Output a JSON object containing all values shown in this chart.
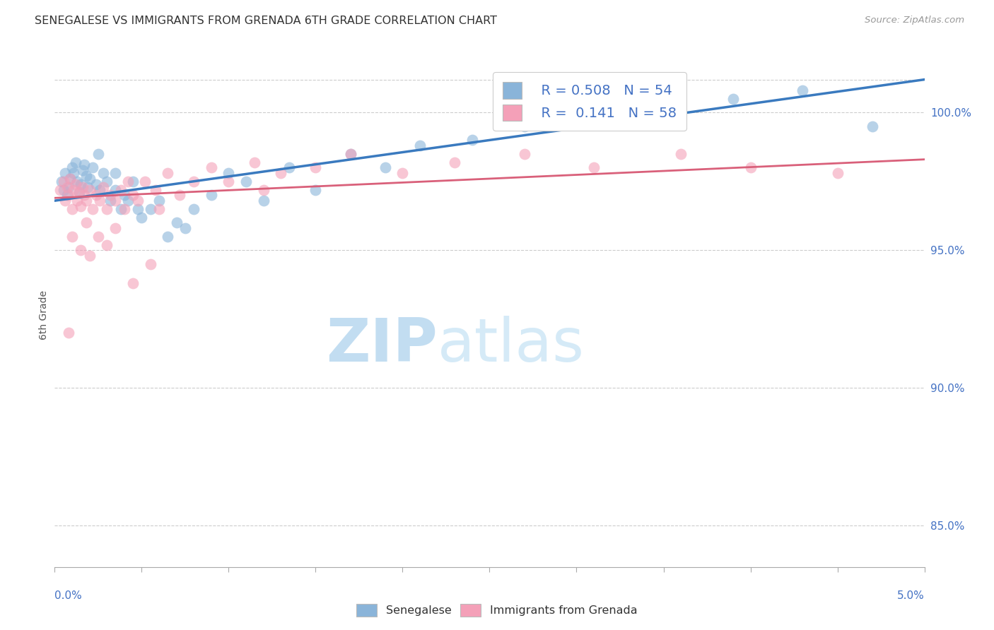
{
  "title": "SENEGALESE VS IMMIGRANTS FROM GRENADA 6TH GRADE CORRELATION CHART",
  "source": "Source: ZipAtlas.com",
  "ylabel": "6th Grade",
  "y_ticks": [
    85.0,
    90.0,
    95.0,
    100.0
  ],
  "x_min": 0.0,
  "x_max": 5.0,
  "y_min": 83.5,
  "y_max": 101.8,
  "legend_blue_r": "R = 0.508",
  "legend_blue_n": "N = 54",
  "legend_pink_r": "R =  0.141",
  "legend_pink_n": "N = 58",
  "blue_color": "#8ab4d9",
  "pink_color": "#f4a0b8",
  "trend_blue_color": "#3a7abf",
  "trend_pink_color": "#d9607a",
  "watermark_zip": "ZIP",
  "watermark_atlas": "atlas",
  "blue_scatter_x": [
    0.04,
    0.05,
    0.06,
    0.07,
    0.08,
    0.09,
    0.1,
    0.11,
    0.12,
    0.13,
    0.14,
    0.15,
    0.16,
    0.17,
    0.18,
    0.19,
    0.2,
    0.22,
    0.24,
    0.26,
    0.28,
    0.3,
    0.32,
    0.35,
    0.38,
    0.4,
    0.42,
    0.45,
    0.5,
    0.55,
    0.6,
    0.65,
    0.7,
    0.75,
    0.8,
    0.9,
    1.0,
    1.1,
    1.2,
    1.35,
    1.5,
    1.7,
    1.9,
    2.1,
    2.4,
    2.7,
    3.1,
    3.5,
    3.9,
    4.3,
    4.7,
    0.25,
    0.35,
    0.48
  ],
  "blue_scatter_y": [
    97.5,
    97.2,
    97.8,
    97.0,
    97.3,
    97.6,
    98.0,
    97.8,
    98.2,
    97.5,
    97.1,
    97.4,
    97.9,
    98.1,
    97.7,
    97.3,
    97.6,
    98.0,
    97.4,
    97.2,
    97.8,
    97.5,
    96.8,
    97.2,
    96.5,
    97.0,
    96.8,
    97.5,
    96.2,
    96.5,
    96.8,
    95.5,
    96.0,
    95.8,
    96.5,
    97.0,
    97.8,
    97.5,
    96.8,
    98.0,
    97.2,
    98.5,
    98.0,
    98.8,
    99.0,
    99.5,
    99.8,
    100.2,
    100.5,
    100.8,
    99.5,
    98.5,
    97.8,
    96.5
  ],
  "pink_scatter_x": [
    0.03,
    0.05,
    0.06,
    0.07,
    0.08,
    0.09,
    0.1,
    0.11,
    0.12,
    0.13,
    0.14,
    0.15,
    0.16,
    0.17,
    0.18,
    0.2,
    0.22,
    0.24,
    0.26,
    0.28,
    0.3,
    0.32,
    0.35,
    0.38,
    0.4,
    0.42,
    0.45,
    0.48,
    0.52,
    0.58,
    0.65,
    0.72,
    0.8,
    0.9,
    1.0,
    1.15,
    1.3,
    1.5,
    1.7,
    2.0,
    2.3,
    2.7,
    3.1,
    3.6,
    4.0,
    4.5,
    0.1,
    0.15,
    0.2,
    0.25,
    0.3,
    0.35,
    0.45,
    0.6,
    0.08,
    0.18,
    0.55,
    1.2
  ],
  "pink_scatter_y": [
    97.2,
    97.5,
    96.8,
    97.3,
    97.0,
    97.6,
    96.5,
    97.2,
    97.4,
    96.8,
    97.1,
    96.6,
    97.3,
    97.0,
    96.8,
    97.2,
    96.5,
    97.0,
    96.8,
    97.3,
    96.5,
    97.0,
    96.8,
    97.2,
    96.5,
    97.5,
    97.0,
    96.8,
    97.5,
    97.2,
    97.8,
    97.0,
    97.5,
    98.0,
    97.5,
    98.2,
    97.8,
    98.0,
    98.5,
    97.8,
    98.2,
    98.5,
    98.0,
    98.5,
    98.0,
    97.8,
    95.5,
    95.0,
    94.8,
    95.5,
    95.2,
    95.8,
    93.8,
    96.5,
    92.0,
    96.0,
    94.5,
    97.2
  ],
  "blue_trend_x0": 0.0,
  "blue_trend_y0": 96.8,
  "blue_trend_x1": 5.0,
  "blue_trend_y1": 101.2,
  "pink_trend_x0": 0.0,
  "pink_trend_y0": 96.9,
  "pink_trend_x1": 5.0,
  "pink_trend_y1": 98.3
}
